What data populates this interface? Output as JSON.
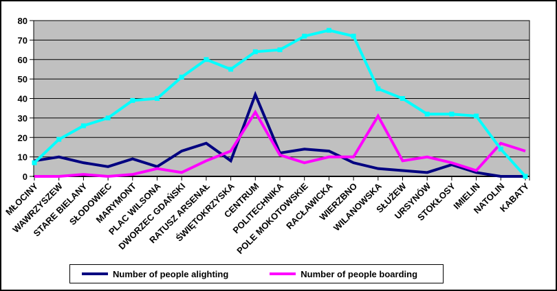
{
  "chart_data": {
    "type": "line",
    "title": "",
    "xlabel": "",
    "ylabel": "",
    "ylim": [
      0,
      80
    ],
    "ytick_step": 10,
    "yticks": [
      "0",
      "10",
      "20",
      "30",
      "40",
      "50",
      "60",
      "70",
      "80"
    ],
    "grid": "horizontal",
    "plot_bg": "#C0C0C0",
    "legend_position": "bottom",
    "categories": [
      "MŁOCINY",
      "WAWRZYSZEW",
      "STARE BIELANY",
      "SŁODOWIEC",
      "MARYMONT",
      "PLAC WILSONA",
      "DWORZEC GDAŃSKI",
      "RATUSZ ARSENAŁ",
      "ŚWIĘTOKRZYSKA",
      "CENTRUM",
      "POLITECHNIKA",
      "POLE MOKOTOWSKIE",
      "RACŁAWICKA",
      "WIERZBNO",
      "WILANOWSKA",
      "SŁUŻEW",
      "URSYNÓW",
      "STOKŁOSY",
      "IMIELIN",
      "NATOLIN",
      "KABATY"
    ],
    "series": [
      {
        "name": "Number of people alighting",
        "color": "#000080",
        "in_legend": true,
        "markers": false,
        "values": [
          8,
          10,
          7,
          5,
          9,
          5,
          13,
          17,
          8,
          42,
          12,
          14,
          13,
          7,
          4,
          3,
          2,
          6,
          2,
          0,
          0
        ]
      },
      {
        "name": "Number of people boarding",
        "color": "#FF00FF",
        "in_legend": true,
        "markers": false,
        "values": [
          0,
          0,
          1,
          0,
          1,
          4,
          2,
          8,
          13,
          33,
          11,
          7,
          10,
          10,
          31,
          8,
          10,
          7,
          3,
          17,
          13
        ]
      },
      {
        "name": "",
        "color": "#00FFFF",
        "in_legend": false,
        "markers": true,
        "values": [
          7,
          19,
          26,
          30,
          39,
          40,
          51,
          60,
          55,
          64,
          65,
          72,
          75,
          72,
          45,
          40,
          32,
          32,
          31,
          14,
          0
        ]
      }
    ]
  },
  "legend": {
    "items": [
      {
        "label": "Number of people alighting"
      },
      {
        "label": "Number of people boarding"
      }
    ]
  }
}
